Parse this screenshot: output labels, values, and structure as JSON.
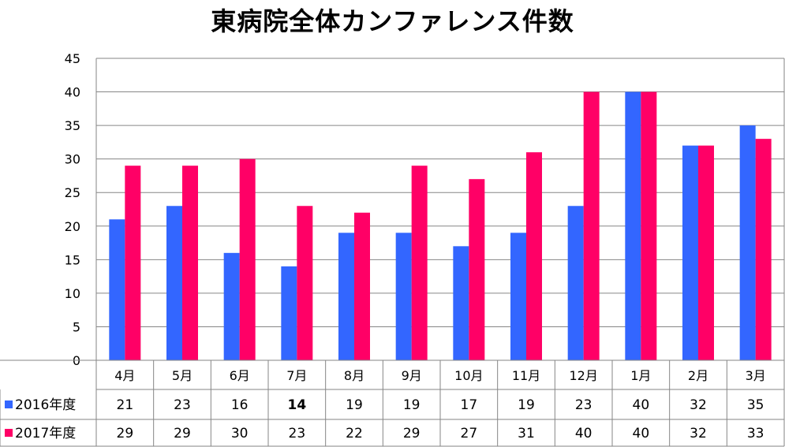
{
  "chart_data": {
    "type": "bar",
    "title": "東病院全体カンファレンス件数",
    "categories": [
      "4月",
      "5月",
      "6月",
      "7月",
      "8月",
      "9月",
      "10月",
      "11月",
      "12月",
      "1月",
      "2月",
      "3月"
    ],
    "series": [
      {
        "name": "2016年度",
        "color": "#3366ff",
        "values": [
          21,
          23,
          16,
          14,
          19,
          19,
          17,
          19,
          23,
          40,
          32,
          35
        ]
      },
      {
        "name": "2017年度",
        "color": "#ff0066",
        "values": [
          29,
          29,
          30,
          23,
          22,
          29,
          27,
          31,
          40,
          40,
          32,
          33
        ]
      }
    ],
    "ylim": [
      0,
      45
    ],
    "yticks": [
      0,
      5,
      10,
      15,
      20,
      25,
      30,
      35,
      40,
      45
    ],
    "grid": true,
    "legend": "data-table",
    "bold_values": [
      {
        "series": 0,
        "index": 3
      }
    ]
  }
}
